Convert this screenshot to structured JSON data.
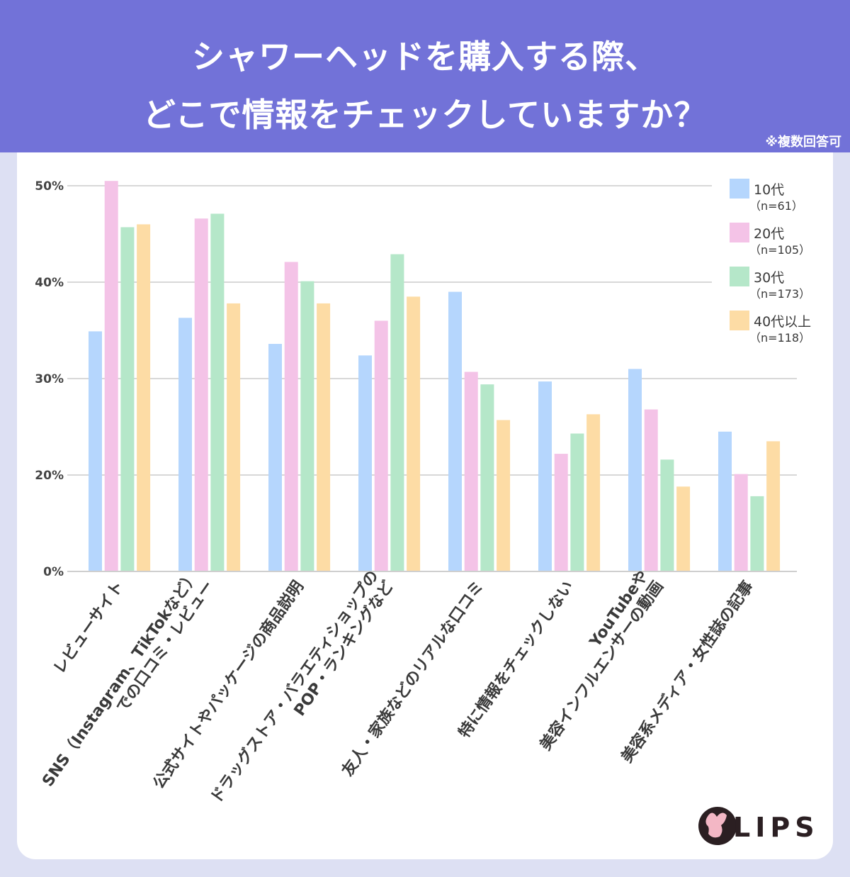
{
  "header": {
    "title_line1": "シャワーヘッドを購入する際、",
    "title_line2": "どこで情報をチェックしていますか？",
    "note": "※複数回答可"
  },
  "logo": {
    "text": "LIPS"
  },
  "colors": {
    "header": "#7272d8",
    "background": "#dde0f3"
  },
  "chart_data": {
    "type": "bar",
    "title": "シャワーヘッドを購入する際、どこで情報をチェックしていますか？",
    "categories": [
      [
        "レビューサイト"
      ],
      [
        "SNS（Instagram、TikTokなど）",
        "での口コミ・レビュー"
      ],
      [
        "公式サイトやパッケージの商品説明"
      ],
      [
        "ドラッグストア・バラエティショップの",
        "POP・ランキングなど"
      ],
      [
        "友人・家族などのリアルな口コミ"
      ],
      [
        "特に情報をチェックしない"
      ],
      [
        "YouTubeや",
        "美容インフルエンサーの動画"
      ],
      [
        "美容系メディア・女性誌の記事"
      ]
    ],
    "series": [
      {
        "name": "10代",
        "n": "（n=61）",
        "color": "#b5d6fd",
        "values": [
          34.9,
          36.3,
          33.6,
          32.4,
          39.0,
          29.7,
          31.0,
          24.5
        ]
      },
      {
        "name": "20代",
        "n": "（n=105）",
        "color": "#f4c3e7",
        "values": [
          50.5,
          46.6,
          42.1,
          36.0,
          30.7,
          22.2,
          26.8,
          20.1
        ]
      },
      {
        "name": "30代",
        "n": "（n=173）",
        "color": "#b5e7c9",
        "values": [
          45.7,
          47.1,
          40.1,
          42.9,
          29.4,
          24.3,
          21.6,
          17.8
        ]
      },
      {
        "name": "40代以上",
        "n": "（n=118）",
        "color": "#fddca5",
        "values": [
          46.0,
          37.8,
          37.8,
          38.5,
          25.7,
          26.3,
          18.8,
          23.5
        ]
      }
    ],
    "yticks": [
      {
        "v": 0,
        "label": "0%"
      },
      {
        "v": 20,
        "label": "20%"
      },
      {
        "v": 30,
        "label": "30%"
      },
      {
        "v": 40,
        "label": "40%"
      },
      {
        "v": 50,
        "label": "50%"
      }
    ],
    "ylim": [
      0,
      50
    ],
    "axis_break": true,
    "grid": true,
    "legend": "top-right"
  }
}
